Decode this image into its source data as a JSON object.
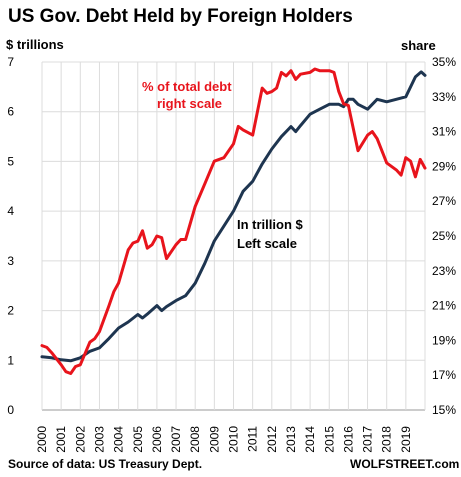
{
  "header": {
    "title": "US Gov. Debt Held by Foreign Holders",
    "left_unit": "$ trillions",
    "right_unit": "share"
  },
  "footer": {
    "source": "Source of data: US Treasury Dept.",
    "brand": "WOLFSTREET.com"
  },
  "chart_data": {
    "type": "line",
    "title": "US Gov. Debt Held by Foreign Holders",
    "xlabel": "",
    "ylabel": "$ trillions",
    "y2label": "share",
    "xlim": [
      2000,
      2020
    ],
    "ylim": [
      0,
      7
    ],
    "y2lim": [
      15,
      35
    ],
    "x_ticks": [
      "2000",
      "2001",
      "2002",
      "2003",
      "2004",
      "2005",
      "2006",
      "2007",
      "2008",
      "2009",
      "2010",
      "2011",
      "2012",
      "2013",
      "2014",
      "2015",
      "2016",
      "2017",
      "2018",
      "2019"
    ],
    "y_ticks": [
      "0",
      "1",
      "2",
      "3",
      "4",
      "5",
      "6",
      "7"
    ],
    "y2_ticks": [
      "15%",
      "17%",
      "19%",
      "21%",
      "23%",
      "25%",
      "27%",
      "29%",
      "31%",
      "33%",
      "35%"
    ],
    "grid": true,
    "annotations": [
      {
        "text": "% of total debt",
        "series": "share"
      },
      {
        "text": "right scale",
        "series": "share"
      },
      {
        "text": "In trillion $",
        "series": "amount"
      },
      {
        "text": "Left scale",
        "series": "amount"
      }
    ],
    "series": [
      {
        "axis": "left",
        "color": "#1e3550",
        "x": [
          2000.0,
          2000.5,
          2001.0,
          2001.5,
          2002.0,
          2002.5,
          2003.0,
          2003.5,
          2004.0,
          2004.5,
          2005.0,
          2005.25,
          2005.5,
          2006.0,
          2006.25,
          2006.5,
          2007.0,
          2007.5,
          2008.0,
          2008.5,
          2009.0,
          2009.5,
          2010.0,
          2010.5,
          2011.0,
          2011.5,
          2012.0,
          2012.5,
          2013.0,
          2013.25,
          2013.5,
          2014.0,
          2014.5,
          2015.0,
          2015.5,
          2015.75,
          2016.0,
          2016.25,
          2016.5,
          2017.0,
          2017.5,
          2018.0,
          2018.5,
          2019.0,
          2019.5,
          2019.8,
          2020.0
        ],
        "values": [
          1.07,
          1.05,
          1.01,
          0.99,
          1.05,
          1.18,
          1.25,
          1.44,
          1.65,
          1.77,
          1.92,
          1.85,
          1.93,
          2.1,
          2.0,
          2.08,
          2.2,
          2.3,
          2.55,
          2.95,
          3.4,
          3.7,
          4.0,
          4.4,
          4.6,
          4.95,
          5.25,
          5.5,
          5.7,
          5.6,
          5.72,
          5.95,
          6.05,
          6.15,
          6.15,
          6.1,
          6.25,
          6.25,
          6.15,
          6.05,
          6.25,
          6.2,
          6.25,
          6.3,
          6.7,
          6.8,
          6.73
        ]
      },
      {
        "axis": "right",
        "color": "#e8141c",
        "x": [
          2000.0,
          2000.25,
          2000.5,
          2001.0,
          2001.25,
          2001.5,
          2001.75,
          2002.0,
          2002.5,
          2002.75,
          2003.0,
          2003.5,
          2003.75,
          2004.0,
          2004.5,
          2004.75,
          2005.0,
          2005.25,
          2005.5,
          2005.75,
          2006.0,
          2006.25,
          2006.5,
          2007.0,
          2007.25,
          2007.5,
          2008.0,
          2008.5,
          2009.0,
          2009.5,
          2010.0,
          2010.25,
          2010.5,
          2011.0,
          2011.5,
          2011.75,
          2012.0,
          2012.25,
          2012.5,
          2012.75,
          2013.0,
          2013.25,
          2013.5,
          2014.0,
          2014.25,
          2014.5,
          2015.0,
          2015.25,
          2015.5,
          2015.75,
          2016.0,
          2016.5,
          2017.0,
          2017.25,
          2017.5,
          2018.0,
          2018.5,
          2018.75,
          2019.0,
          2019.25,
          2019.5,
          2019.75,
          2020.0
        ],
        "values": [
          18.7,
          18.6,
          18.3,
          17.6,
          17.2,
          17.1,
          17.5,
          17.6,
          18.9,
          19.1,
          19.5,
          21.0,
          21.8,
          22.3,
          24.2,
          24.6,
          24.7,
          25.3,
          24.3,
          24.5,
          25.0,
          24.9,
          23.7,
          24.5,
          24.8,
          24.8,
          26.7,
          28.0,
          29.3,
          29.5,
          30.3,
          31.3,
          31.1,
          30.8,
          33.5,
          33.2,
          33.3,
          33.5,
          34.4,
          34.2,
          34.5,
          34.0,
          34.3,
          34.4,
          34.6,
          34.5,
          34.5,
          34.4,
          33.3,
          32.6,
          32.5,
          29.9,
          30.8,
          31.0,
          30.6,
          29.2,
          28.8,
          28.5,
          29.5,
          29.3,
          28.4,
          29.4,
          28.9
        ]
      }
    ]
  }
}
